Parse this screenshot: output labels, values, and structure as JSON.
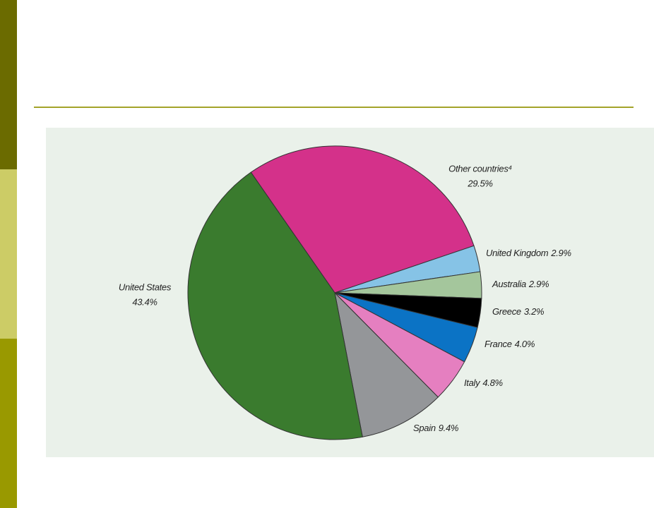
{
  "chart_data": {
    "type": "pie",
    "categories": [
      "Other countries⁴",
      "United Kingdom",
      "Australia",
      "Greece",
      "France",
      "Italy",
      "Spain",
      "United States"
    ],
    "values": [
      29.5,
      2.9,
      2.9,
      3.2,
      4.0,
      4.8,
      9.4,
      43.4
    ],
    "value_labels": [
      "29.5%",
      "2.9%",
      "2.9%",
      "3.2%",
      "4.0%",
      "4.8%",
      "9.4%",
      "43.4%"
    ],
    "colors": [
      "#d4318a",
      "#86c3e6",
      "#a4c69c",
      "#000000",
      "#0b73c5",
      "#e57fc0",
      "#949699",
      "#3a7b2e"
    ]
  }
}
